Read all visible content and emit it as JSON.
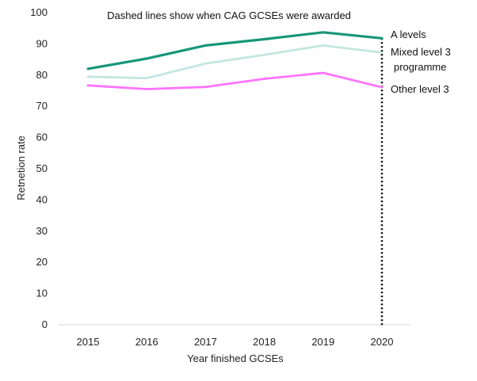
{
  "chart_data": {
    "type": "line",
    "annotation": "Dashed lines show when CAG GCSEs were awarded",
    "xlabel": "Year finished GCSEs",
    "ylabel": "Retnetion rate",
    "x": [
      "2015",
      "2016",
      "2017",
      "2018",
      "2019",
      "2020"
    ],
    "ylim": [
      0,
      100
    ],
    "yticks": [
      0,
      10,
      20,
      30,
      40,
      50,
      60,
      70,
      80,
      90,
      100
    ],
    "grid": false,
    "legend": "direct labels at line ends",
    "marker_line": {
      "x": "2020",
      "style": "dotted",
      "color": "#000000"
    },
    "series": [
      {
        "name": "A levels",
        "label_lines": [
          "A levels"
        ],
        "color": "#17967a",
        "values": [
          82,
          85.3,
          89.5,
          91.5,
          93.7,
          91.8
        ]
      },
      {
        "name": "Mixed level 3 programme",
        "label_lines": [
          "Mixed level 3",
          "programme"
        ],
        "color": "#c3e6e1",
        "values": [
          79.5,
          79,
          83.7,
          86.5,
          89.5,
          87.2
        ]
      },
      {
        "name": "Other level 3",
        "label_lines": [
          "Other level 3"
        ],
        "color": "#ff73ff",
        "values": [
          76.7,
          75.5,
          76.2,
          78.8,
          80.7,
          76.1
        ]
      }
    ]
  }
}
